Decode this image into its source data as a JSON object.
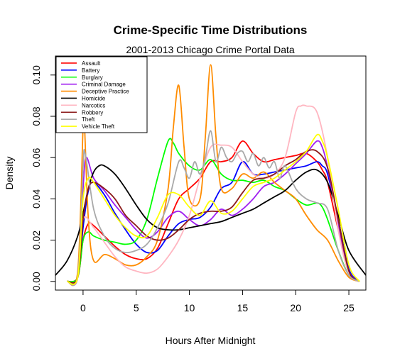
{
  "chart_data": {
    "type": "line",
    "title": "Crime-Specific Time Distributions",
    "subtitle": "2001-2013 Chicago Crime Portal Data",
    "xlabel": "Hours After Midnight",
    "ylabel": "Density",
    "xlim": [
      -2.6,
      26.6
    ],
    "ylim": [
      -0.0042,
      0.1092
    ],
    "xticks": [
      0,
      5,
      10,
      15,
      20,
      25
    ],
    "yticks": [
      0.0,
      0.02,
      0.04,
      0.06,
      0.08,
      0.1
    ],
    "ytick_labels": [
      "0.00",
      "0.02",
      "0.04",
      "0.06",
      "0.08",
      "0.10"
    ],
    "grid": false,
    "legend_position": "top-left",
    "series": [
      {
        "name": "Assault",
        "color": "#ff0000",
        "x": [
          -1.5,
          -0.5,
          0,
          0.5,
          1,
          2,
          3,
          4,
          5,
          6,
          7,
          8,
          9,
          10,
          11,
          12,
          13,
          14,
          15,
          16,
          17,
          18,
          19,
          20,
          21,
          22,
          22.5,
          23,
          24,
          25,
          26
        ],
        "y": [
          0,
          0.002,
          0.02,
          0.028,
          0.027,
          0.022,
          0.017,
          0.013,
          0.011,
          0.011,
          0.016,
          0.028,
          0.04,
          0.045,
          0.05,
          0.058,
          0.058,
          0.06,
          0.068,
          0.062,
          0.058,
          0.059,
          0.06,
          0.061,
          0.062,
          0.058,
          0.054,
          0.048,
          0.025,
          0.005,
          0
        ]
      },
      {
        "name": "Battery",
        "color": "#0000ff",
        "x": [
          -1.5,
          -0.5,
          0,
          0.5,
          1,
          2,
          3,
          4,
          5,
          6,
          7,
          8,
          9,
          10,
          11,
          12,
          13,
          14,
          15,
          16,
          17,
          18,
          19,
          20,
          21,
          22,
          22.5,
          23,
          24,
          25,
          26
        ],
        "y": [
          0,
          0.002,
          0.026,
          0.044,
          0.048,
          0.042,
          0.033,
          0.025,
          0.018,
          0.014,
          0.015,
          0.022,
          0.028,
          0.03,
          0.031,
          0.036,
          0.045,
          0.048,
          0.058,
          0.052,
          0.052,
          0.053,
          0.054,
          0.055,
          0.056,
          0.058,
          0.056,
          0.052,
          0.03,
          0.006,
          0
        ]
      },
      {
        "name": "Burglary",
        "color": "#00ff00",
        "x": [
          -1.5,
          -0.5,
          0,
          0.5,
          1,
          2,
          3,
          4,
          5,
          6,
          7,
          8,
          8.5,
          9,
          10,
          11,
          12,
          13,
          14,
          15,
          16,
          17,
          18,
          19,
          20,
          21,
          22,
          22.5,
          23,
          24,
          25,
          26
        ],
        "y": [
          0,
          0.002,
          0.02,
          0.024,
          0.022,
          0.02,
          0.019,
          0.018,
          0.02,
          0.03,
          0.05,
          0.068,
          0.067,
          0.062,
          0.056,
          0.054,
          0.059,
          0.052,
          0.049,
          0.049,
          0.048,
          0.049,
          0.046,
          0.044,
          0.04,
          0.037,
          0.038,
          0.036,
          0.03,
          0.015,
          0.003,
          0
        ]
      },
      {
        "name": "Criminal Damage",
        "color": "#a020f0",
        "x": [
          -1.5,
          -0.5,
          0,
          0.3,
          1,
          2,
          3,
          4,
          5,
          6,
          7,
          8,
          9,
          10,
          11,
          12,
          13,
          14,
          15,
          16,
          17,
          18,
          19,
          20,
          21,
          22,
          22.5,
          23,
          24,
          25,
          26
        ],
        "y": [
          0,
          0.002,
          0.045,
          0.06,
          0.05,
          0.044,
          0.037,
          0.031,
          0.025,
          0.021,
          0.024,
          0.031,
          0.034,
          0.03,
          0.027,
          0.03,
          0.035,
          0.032,
          0.035,
          0.04,
          0.046,
          0.048,
          0.052,
          0.057,
          0.062,
          0.068,
          0.065,
          0.055,
          0.028,
          0.005,
          0
        ]
      },
      {
        "name": "Deceptive Practice",
        "color": "#ff8c00",
        "x": [
          -1.5,
          -0.5,
          0,
          0.1,
          0.5,
          1,
          2,
          3,
          4,
          5,
          6,
          7,
          8,
          8.5,
          9,
          9.5,
          10,
          11,
          11.5,
          12,
          12.5,
          13,
          14,
          15,
          16,
          17,
          18,
          19,
          20,
          21,
          22,
          23,
          24,
          25,
          26
        ],
        "y": [
          0,
          0.005,
          0.075,
          0.08,
          0.03,
          0.01,
          0.013,
          0.011,
          0.008,
          0.008,
          0.012,
          0.02,
          0.045,
          0.075,
          0.095,
          0.065,
          0.04,
          0.04,
          0.07,
          0.105,
          0.07,
          0.045,
          0.045,
          0.052,
          0.05,
          0.053,
          0.048,
          0.044,
          0.04,
          0.032,
          0.025,
          0.02,
          0.01,
          0.002,
          0
        ]
      },
      {
        "name": "Homicide",
        "color": "#000000",
        "x": [
          -2.6,
          -1.5,
          -0.5,
          0,
          0.5,
          1,
          1.5,
          2,
          3,
          4,
          5,
          6,
          7,
          8,
          9,
          10,
          11,
          12,
          13,
          14,
          15,
          16,
          17,
          18,
          19,
          20,
          21,
          22,
          23,
          24,
          25,
          26.6
        ],
        "y": [
          0.003,
          0.01,
          0.022,
          0.033,
          0.045,
          0.053,
          0.056,
          0.056,
          0.052,
          0.045,
          0.037,
          0.03,
          0.026,
          0.025,
          0.025,
          0.026,
          0.027,
          0.028,
          0.029,
          0.031,
          0.033,
          0.035,
          0.038,
          0.041,
          0.044,
          0.049,
          0.053,
          0.054,
          0.048,
          0.032,
          0.015,
          0.003
        ]
      },
      {
        "name": "Narcotics",
        "color": "#ffb6c1",
        "x": [
          -1.5,
          -0.5,
          0,
          1,
          2,
          3,
          4,
          5,
          6,
          7,
          8,
          9,
          10,
          11,
          12,
          13,
          14,
          15,
          16,
          17,
          18,
          19,
          20,
          20.5,
          21,
          22,
          23,
          24,
          25,
          26
        ],
        "y": [
          0,
          0.002,
          0.03,
          0.026,
          0.019,
          0.012,
          0.007,
          0.005,
          0.004,
          0.006,
          0.012,
          0.02,
          0.032,
          0.05,
          0.065,
          0.066,
          0.065,
          0.058,
          0.052,
          0.05,
          0.052,
          0.06,
          0.082,
          0.085,
          0.085,
          0.082,
          0.06,
          0.025,
          0.004,
          0
        ]
      },
      {
        "name": "Robbery",
        "color": "#8b1a1a",
        "x": [
          -1.5,
          -0.5,
          0,
          0.5,
          1,
          2,
          3,
          4,
          5,
          6,
          7,
          8,
          9,
          10,
          11,
          12,
          13,
          14,
          15,
          16,
          17,
          18,
          19,
          20,
          21,
          22,
          23,
          24,
          25,
          26
        ],
        "y": [
          0,
          0.002,
          0.03,
          0.045,
          0.048,
          0.045,
          0.04,
          0.032,
          0.027,
          0.022,
          0.02,
          0.021,
          0.025,
          0.03,
          0.033,
          0.034,
          0.034,
          0.036,
          0.043,
          0.049,
          0.05,
          0.052,
          0.056,
          0.059,
          0.063,
          0.063,
          0.055,
          0.03,
          0.005,
          0
        ]
      },
      {
        "name": "Theft",
        "color": "#a9a9a9",
        "x": [
          -1.5,
          -0.5,
          0,
          0.2,
          1,
          2,
          3,
          4,
          5,
          6,
          7,
          8,
          9,
          9.5,
          10,
          10.5,
          11,
          11.5,
          12,
          12.5,
          13,
          13.5,
          14,
          14.5,
          15,
          15.5,
          16,
          16.5,
          17,
          17.5,
          18,
          18.5,
          19,
          20,
          21,
          22,
          23,
          24,
          25,
          26
        ],
        "y": [
          0,
          0.003,
          0.055,
          0.062,
          0.035,
          0.022,
          0.016,
          0.014,
          0.015,
          0.018,
          0.026,
          0.038,
          0.058,
          0.055,
          0.05,
          0.058,
          0.052,
          0.06,
          0.073,
          0.058,
          0.065,
          0.06,
          0.058,
          0.062,
          0.063,
          0.058,
          0.062,
          0.056,
          0.06,
          0.055,
          0.058,
          0.05,
          0.056,
          0.045,
          0.04,
          0.038,
          0.035,
          0.015,
          0.003,
          0
        ]
      },
      {
        "name": "Vehicle Theft",
        "color": "#ffff00",
        "x": [
          -1.5,
          -0.5,
          0,
          0.5,
          1,
          2,
          3,
          4,
          5,
          6,
          7,
          8,
          9,
          10,
          11,
          12,
          13,
          14,
          15,
          16,
          17,
          18,
          19,
          20,
          21,
          22,
          22.5,
          23,
          24,
          25,
          26
        ],
        "y": [
          0,
          0.002,
          0.04,
          0.05,
          0.048,
          0.04,
          0.032,
          0.026,
          0.022,
          0.022,
          0.031,
          0.042,
          0.042,
          0.036,
          0.032,
          0.039,
          0.033,
          0.034,
          0.04,
          0.046,
          0.048,
          0.05,
          0.054,
          0.058,
          0.063,
          0.071,
          0.068,
          0.06,
          0.035,
          0.008,
          0
        ]
      }
    ]
  }
}
